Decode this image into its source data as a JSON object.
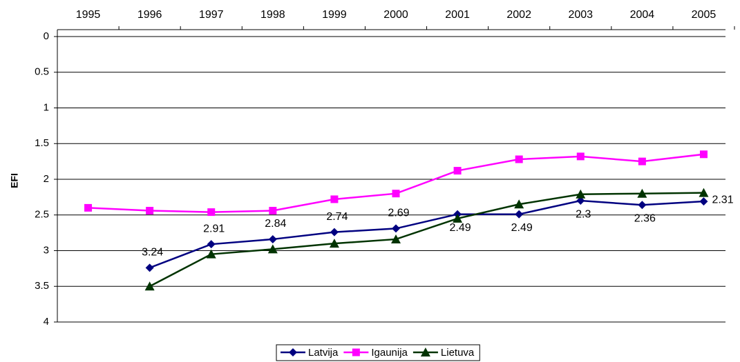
{
  "chart_data": {
    "type": "line",
    "y_label": "EFI",
    "categories": [
      "1995",
      "1996",
      "1997",
      "1998",
      "1999",
      "2000",
      "2001",
      "2002",
      "2003",
      "2004",
      "2005"
    ],
    "ylim": [
      0,
      4
    ],
    "y_inverted": true,
    "yticks": [
      0,
      0.5,
      1,
      1.5,
      2,
      2.5,
      3,
      3.5,
      4
    ],
    "grid": true,
    "legend": "bottom",
    "series": [
      {
        "name": "Latvija",
        "color": "#000080",
        "marker": "diamond",
        "data_labels": true,
        "values": [
          null,
          3.24,
          2.91,
          2.84,
          2.74,
          2.69,
          2.49,
          2.49,
          2.3,
          2.36,
          2.31
        ]
      },
      {
        "name": "Igaunija",
        "color": "#ff00ff",
        "marker": "square",
        "values": [
          2.4,
          2.44,
          2.46,
          2.44,
          2.28,
          2.2,
          1.88,
          1.72,
          1.68,
          1.75,
          1.65
        ]
      },
      {
        "name": "Lietuva",
        "color": "#003300",
        "marker": "triangle",
        "values": [
          null,
          3.5,
          3.05,
          2.98,
          2.9,
          2.84,
          2.55,
          2.35,
          2.21,
          2.2,
          2.19
        ]
      }
    ]
  }
}
